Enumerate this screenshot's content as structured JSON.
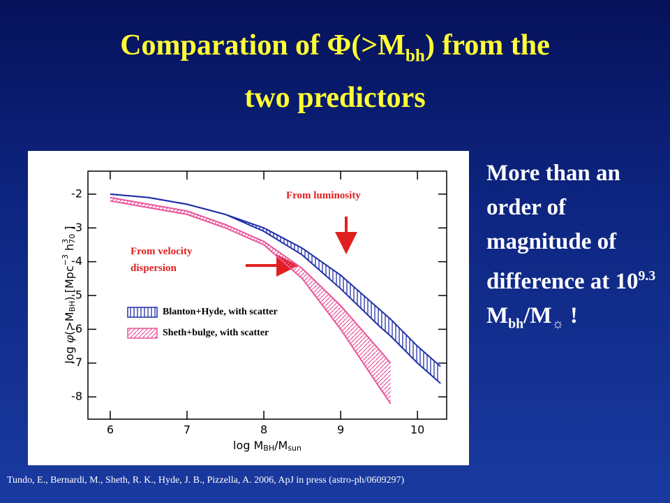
{
  "slide": {
    "title": [
      "Comparation of  Φ(>M",
      "bh",
      ") from the",
      "two predictors"
    ],
    "side_text": [
      "More than an order of magnitude of difference at 10",
      "9.3",
      "M",
      "bh",
      "/M",
      "☼",
      " !"
    ],
    "citation": "Tundo, E., Bernardi, M., Sheth, R. K., Hyde, J. B., Pizzella, A. 2006, ApJ in press  (astro-ph/0609297)"
  },
  "chart_data": {
    "type": "band",
    "xlabel": [
      "log M",
      "BH",
      "/M",
      "sun"
    ],
    "ylabel": [
      "log ",
      "φ",
      "(>M",
      "BH",
      ")  [Mpc",
      "−3",
      " h",
      "3",
      "70",
      " ]"
    ],
    "annotations": [
      "From luminosity",
      "From velocity dispersion"
    ],
    "x": [
      6,
      6.5,
      7,
      7.5,
      8,
      8.5,
      9,
      9.5,
      9.65,
      10,
      10.3
    ],
    "series": [
      {
        "name": "Blanton+Hyde, with scatter",
        "color": "#1f2fa8",
        "upper": [
          -2.0,
          -2.1,
          -2.3,
          -2.6,
          -3.0,
          -3.6,
          -4.4,
          -5.4,
          -5.7,
          -6.5,
          -7.1
        ],
        "lower": [
          -2.0,
          -2.1,
          -2.3,
          -2.6,
          -3.1,
          -3.8,
          -4.8,
          -5.9,
          -6.2,
          -7.0,
          -7.6
        ]
      },
      {
        "name": "Sheth+bulge, with scatter",
        "color": "#e8569a",
        "upper": [
          -2.1,
          -2.3,
          -2.5,
          -2.9,
          -3.4,
          -4.2,
          -5.3,
          -6.6,
          -7.0,
          null,
          null
        ],
        "lower": [
          -2.2,
          -2.4,
          -2.6,
          -3.0,
          -3.5,
          -4.5,
          -6.0,
          -7.7,
          -8.2,
          null,
          null
        ]
      }
    ],
    "xlim": [
      5.71,
      10.38
    ],
    "ylim": [
      -8.66,
      -1.32
    ],
    "xticks": [
      6,
      7,
      8,
      9,
      10
    ],
    "yticks": [
      -2,
      -3,
      -4,
      -5,
      -6,
      -7,
      -8
    ]
  }
}
